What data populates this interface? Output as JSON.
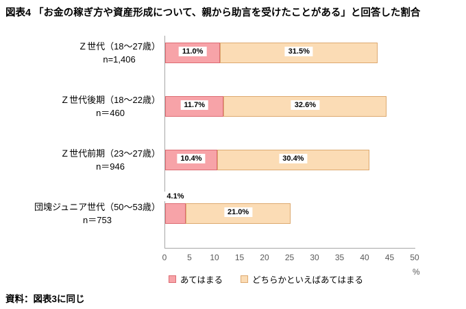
{
  "title": "図表4 「お金の稼ぎ方や資産形成について、親から助言を受けたことがある」と回答した割合",
  "footer": "資料：図表3に同じ",
  "unit_label": "%",
  "chart_data": {
    "type": "bar",
    "orientation": "horizontal-stacked",
    "title": "図表4 「お金の稼ぎ方や資産形成について、親から助言を受けたことがある」と回答した割合",
    "categories": [
      {
        "name": "Ｚ世代（18〜27歳）",
        "n": "n=1,406"
      },
      {
        "name": "Ｚ世代後期（18〜22歳）",
        "n": "n＝460"
      },
      {
        "name": "Ｚ世代前期（23〜27歳）",
        "n": "n＝946"
      },
      {
        "name": "団塊ジュニア世代（50〜53歳）",
        "n": "n＝753"
      }
    ],
    "series": [
      {
        "name": "あてはまる",
        "fill": "#f7a3a8",
        "border": "#dd6b72",
        "values": [
          11.0,
          11.7,
          10.4,
          4.1
        ]
      },
      {
        "name": "どちらかといえばあてはまる",
        "fill": "#fbdcb5",
        "border": "#dda96f",
        "values": [
          31.5,
          32.6,
          30.4,
          21.0
        ]
      }
    ],
    "value_labels": [
      [
        "11.0%",
        "31.5%"
      ],
      [
        "11.7%",
        "32.6%"
      ],
      [
        "10.4%",
        "30.4%"
      ],
      [
        "4.1%",
        "21.0%"
      ]
    ],
    "xlim": [
      0,
      50
    ],
    "ticks": [
      "0",
      "5",
      "10",
      "15",
      "20",
      "25",
      "30",
      "35",
      "40",
      "45",
      "50"
    ],
    "legend_position": "bottom",
    "gridlines": false
  }
}
